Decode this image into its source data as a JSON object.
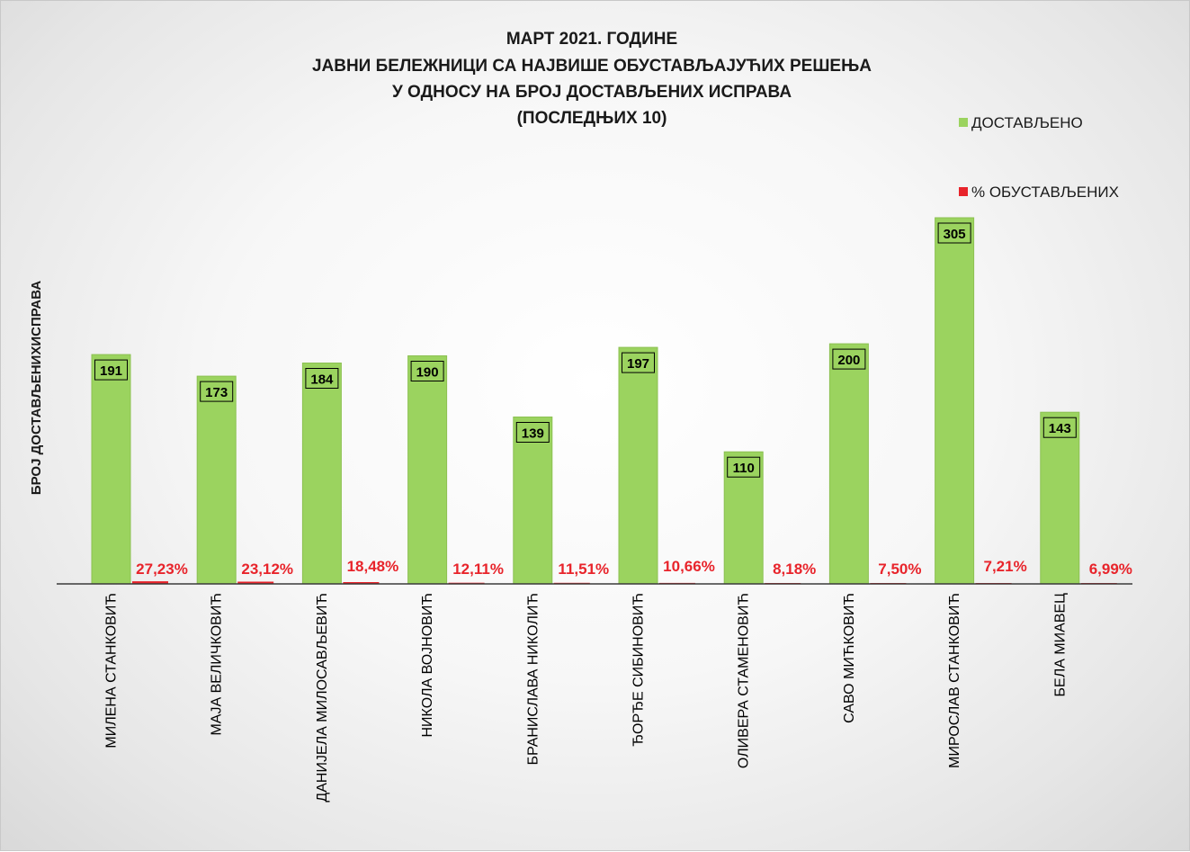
{
  "chart_data": {
    "type": "bar",
    "title": [
      "МАРТ 2021. ГОДИНЕ",
      "ЈАВНИ БЕЛЕЖНИЦИ СА НАЈВИШЕ ОБУСТАВЉАЈУЋИХ РЕШЕЊА",
      "У ОДНОСУ НА БРОЈ ДОСТАВЉЕНИХ ИСПРАВА",
      "(ПОСЛЕДЊИХ 10)"
    ],
    "ylabel": "БРОЈ ДОСТАВЉЕНИХИСПРАВА",
    "xlabel": "",
    "ylim": [
      0,
      340
    ],
    "legend_position": "top-right",
    "categories": [
      "МИЛЕНА СТАНКОВИЋ",
      "МАЈА ВЕЛИЧКОВИЋ",
      "ДАНИЈЕЛА МИЛОСАВЉЕВИЋ",
      "НИКОЛА ВОЈНОВИЋ",
      "БРАНИСЛАВА НИКОЛИЋ",
      "ЂОРЂЕ СИБИНОВИЋ",
      "ОЛИВЕРА СТАМЕНОВИЋ",
      "САВО МИЋКОВИЋ",
      "МИРОСЛАВ СТАНКОВИЋ",
      "БЕЛА МИАВЕЦ"
    ],
    "series": [
      {
        "name": "ДОСТАВЉЕНО",
        "color": "#9bd35f",
        "values": [
          191,
          173,
          184,
          190,
          139,
          197,
          110,
          200,
          305,
          143
        ],
        "labels": [
          "191",
          "173",
          "184",
          "190",
          "139",
          "197",
          "110",
          "200",
          "305",
          "143"
        ]
      },
      {
        "name": "% ОБУСТАВЉЕНИХ",
        "color": "#e8242b",
        "values": [
          27.23,
          23.12,
          18.48,
          12.11,
          11.51,
          10.66,
          8.18,
          7.5,
          7.21,
          6.99
        ],
        "labels": [
          "27,23%",
          "23,12%",
          "18,48%",
          "12,11%",
          "11,51%",
          "10,66%",
          "8,18%",
          "7,50%",
          "7,21%",
          "6,99%"
        ]
      }
    ]
  },
  "colors": {
    "bar_green": "#9bd35f",
    "bar_green_edge": "#8cc152",
    "pct_red": "#e8242b",
    "axis_line": "#3a3a3a"
  }
}
